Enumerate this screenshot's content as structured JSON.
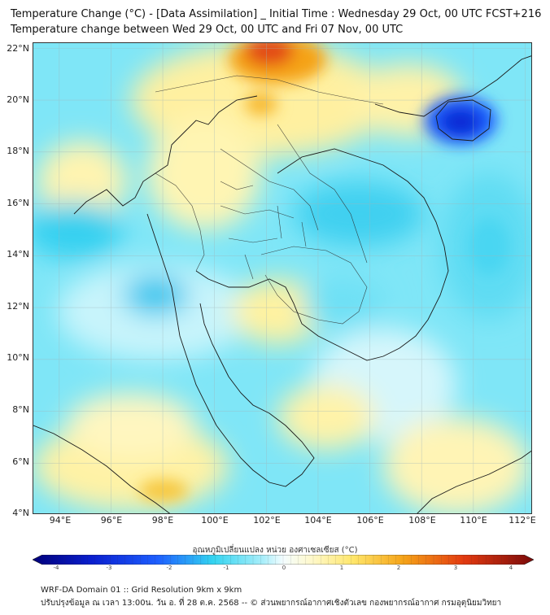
{
  "title": {
    "line1": "Temperature Change (°C) - [Data Assimilation] _ Initial Time : Wednesday 29 Oct, 00 UTC FCST+216",
    "line2": "Temperature change between Wed 29 Oct, 00 UTC and Fri 07 Nov, 00 UTC"
  },
  "map": {
    "lat_labels": [
      "22°N",
      "20°N",
      "18°N",
      "16°N",
      "14°N",
      "12°N",
      "10°N",
      "8°N",
      "6°N",
      "4°N"
    ],
    "lon_labels": [
      "94°E",
      "96°E",
      "98°E",
      "100°E",
      "102°E",
      "104°E",
      "106°E",
      "108°E",
      "110°E",
      "112°E"
    ],
    "lat_range": [
      4,
      22.2
    ],
    "lon_range": [
      93,
      112.3
    ],
    "grid": true,
    "colors": {
      "cold_strong": "#0a1fd0",
      "cold": "#1e5fff",
      "cool": "#33d4f0",
      "neutral": "#e9fbff",
      "warm": "#fff2a0",
      "hot": "#f5a318",
      "very_hot": "#e33a10"
    }
  },
  "colorbar": {
    "title": "อุณหภูมิเปลี่ยนแปลง หน่วย องศาเซลเซียส (°C)",
    "ticks": [
      "-4",
      "-3",
      "-2",
      "-1",
      "0",
      "1",
      "2",
      "3",
      "4"
    ],
    "range": [
      -4,
      4
    ]
  },
  "footer": {
    "line1": "WRF-DA Domain 01 :: Grid Resolution 9km x 9km",
    "line2": "ปรับปรุงข้อมูล ณ เวลา 13:00น. วัน อ. ที่ 28 ต.ค. 2568 -- © ส่วนพยากรณ์อากาศเชิงตัวเลข กองพยากรณ์อากาศ กรมอุตุนิยมวิทยา"
  }
}
